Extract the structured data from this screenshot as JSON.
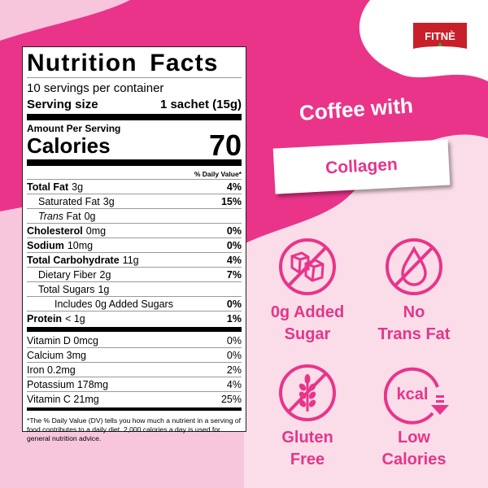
{
  "colors": {
    "brand_pink": "#e9348a",
    "light_pink": "#fbdde9",
    "logo_red": "#c8202a"
  },
  "brand": {
    "logo_text": "FITNÈ"
  },
  "headline": {
    "line1": "Coffee with",
    "banner": "Collagen"
  },
  "label": {
    "title": "Nutrition Facts",
    "servings": "10 servings per container",
    "serving_size_label": "Serving size",
    "serving_size_value": "1 sachet (15g)",
    "amount_per_serving": "Amount Per Serving",
    "calories_label": "Calories",
    "calories_value": "70",
    "daily_value_header": "% Daily Value*",
    "nutrients": [
      {
        "name": "Total Fat",
        "amount": "3g",
        "dv": "4%"
      },
      {
        "name": "Saturated Fat",
        "amount": "3g",
        "dv": "15%"
      },
      {
        "name": "Trans",
        "name2": "Fat",
        "amount": "0g",
        "dv": ""
      },
      {
        "name": "Cholesterol",
        "amount": "0mg",
        "dv": "0%"
      },
      {
        "name": "Sodium",
        "amount": "10mg",
        "dv": "0%"
      },
      {
        "name": "Total Carbohydrate",
        "amount": "11g",
        "dv": "4%"
      },
      {
        "name": "Dietary Fiber",
        "amount": "2g",
        "dv": "7%"
      },
      {
        "name": "Total Sugars",
        "amount": "1g",
        "dv": ""
      },
      {
        "name": "Includes 0g Added Sugars",
        "amount": "",
        "dv": "0%"
      },
      {
        "name": "Protein",
        "amount": "< 1g",
        "dv": "1%"
      }
    ],
    "vitamins": [
      {
        "name": "Vitamin D 0mcg",
        "dv": "0%"
      },
      {
        "name": "Calcium 3mg",
        "dv": "0%"
      },
      {
        "name": "Iron 0.2mg",
        "dv": "2%"
      },
      {
        "name": "Potassium 178mg",
        "dv": "4%"
      },
      {
        "name": "Vitamin C 21mg",
        "dv": "25%"
      }
    ],
    "footnote": "*The % Daily Value (DV) tells you how much a nutrient in a serving of food contributes to a daily diet. 2,000 calories a day is used for general nutrition advice."
  },
  "features": [
    {
      "icon": "no-sugar-cubes-icon",
      "line1": "0g Added",
      "line2": "Sugar"
    },
    {
      "icon": "no-fat-drop-icon",
      "line1": "No",
      "line2": "Trans Fat"
    },
    {
      "icon": "no-wheat-icon",
      "line1": "Gluten",
      "line2": "Free"
    },
    {
      "icon": "kcal-down-icon",
      "icon_text": "kcal",
      "line1": "Low",
      "line2": "Calories"
    }
  ]
}
